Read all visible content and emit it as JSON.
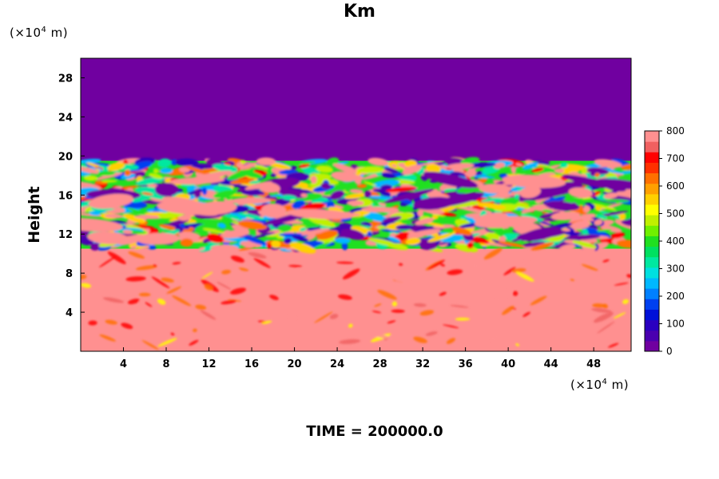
{
  "chart_data": {
    "type": "heatmap",
    "title": "Km",
    "ylabel": "Height",
    "y_unit_prefix": "(×10",
    "y_unit_exp": "4",
    "y_unit_suffix": " m)",
    "x_unit_prefix": "(×10",
    "x_unit_exp": "4",
    "x_unit_suffix": " m)",
    "footer": "TIME = 200000.0",
    "xlim": [
      0,
      51.5
    ],
    "ylim": [
      0,
      30
    ],
    "x_ticks": [
      4,
      8,
      12,
      16,
      20,
      24,
      28,
      32,
      36,
      40,
      44,
      48
    ],
    "y_ticks": [
      4,
      8,
      12,
      16,
      20,
      24,
      28
    ],
    "colorbar": {
      "ticks": [
        0,
        100,
        200,
        300,
        400,
        500,
        600,
        700,
        800
      ],
      "range": [
        0,
        800
      ],
      "colors": [
        "#7000a0",
        "#4a00b0",
        "#2a00c0",
        "#0010d8",
        "#0040f0",
        "#0080ff",
        "#00b8ff",
        "#00e0e0",
        "#00e8a0",
        "#00e060",
        "#20e020",
        "#70f000",
        "#c0f000",
        "#ffff00",
        "#ffd000",
        "#ffa000",
        "#ff7000",
        "#ff3000",
        "#ff0000",
        "#f06060",
        "#ff9090"
      ]
    },
    "layers": {
      "top_value": 0,
      "turbulent_band": [
        10.5,
        19.5
      ],
      "bottom_value": 800
    }
  }
}
